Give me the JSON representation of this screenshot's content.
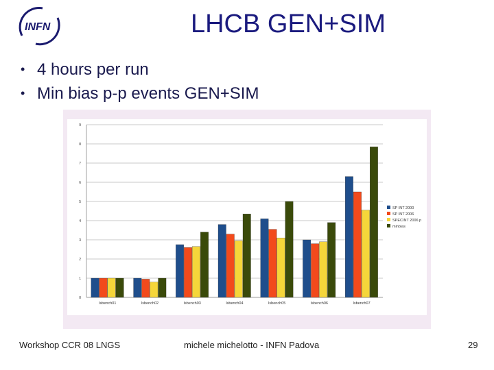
{
  "header": {
    "title": "LHCB GEN+SIM",
    "logo_text": "INFN"
  },
  "bullets": [
    "4 hours per run",
    "Min bias p-p events GEN+SIM"
  ],
  "footer": {
    "left": "Workshop CCR 08 LNGS",
    "center": "michele michelotto - INFN Padova",
    "page_number": "29"
  },
  "colors": {
    "title": "#1a1a7e",
    "series": [
      "#1f4e8c",
      "#f24a1c",
      "#f5d63a",
      "#3a4a0a"
    ],
    "frame": "#f3e9f3"
  },
  "chart_data": {
    "type": "bar",
    "categories": [
      "lsbench01",
      "lsbench02",
      "lsbench03",
      "lsbench04",
      "lsbench05",
      "lsbench06",
      "lsbench07"
    ],
    "series": [
      {
        "name": "SP INT 2000",
        "values": [
          1.0,
          1.0,
          2.75,
          3.8,
          4.1,
          3.0,
          6.3
        ]
      },
      {
        "name": "SP INT 2006",
        "values": [
          1.0,
          0.95,
          2.6,
          3.3,
          3.55,
          2.8,
          5.5
        ]
      },
      {
        "name": "SPECINT 2006 p",
        "values": [
          1.0,
          0.8,
          2.65,
          2.95,
          3.1,
          2.9,
          4.55
        ]
      },
      {
        "name": "minbias",
        "values": [
          1.0,
          1.0,
          3.4,
          4.35,
          5.0,
          3.9,
          7.85
        ]
      }
    ],
    "yticks": [
      "0",
      "1",
      "2",
      "3",
      "4",
      "5",
      "6",
      "7",
      "8",
      "9"
    ],
    "ylim": [
      0,
      9
    ],
    "grid": true,
    "legend": "right"
  }
}
